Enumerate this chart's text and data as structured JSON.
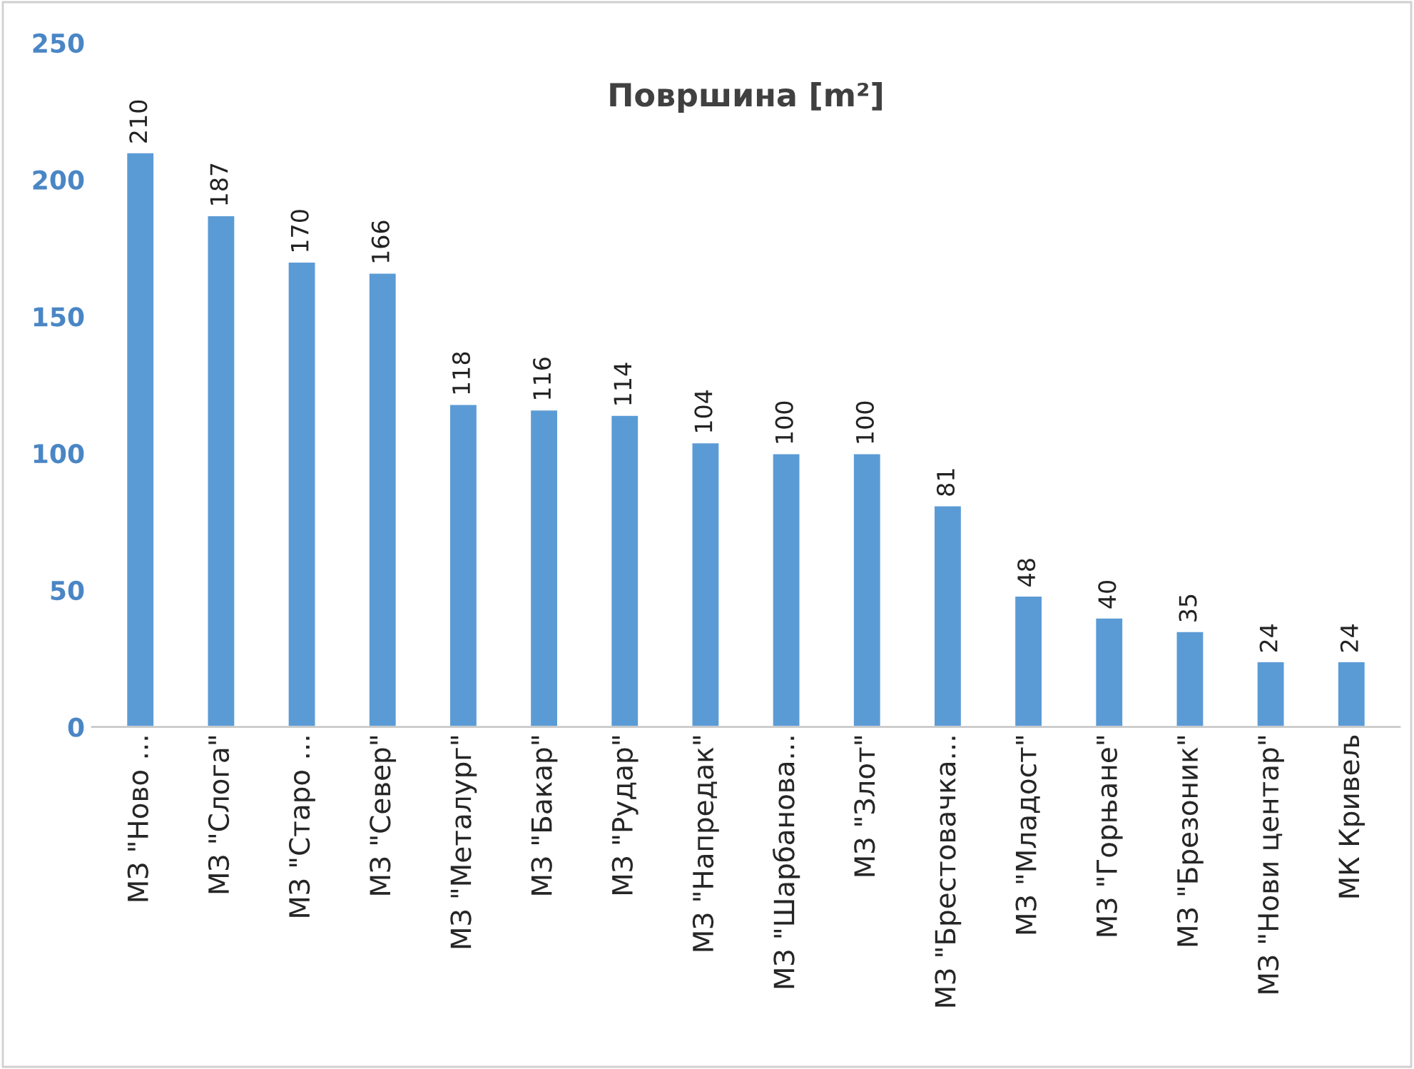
{
  "chart_data": {
    "type": "bar",
    "title": "Површина [m²]",
    "categories": [
      "МЗ \"Ново ...",
      "МЗ \"Слога\"",
      "МЗ \"Старо ...",
      "МЗ \"Север\"",
      "МЗ \"Металург\"",
      "МЗ \"Бакар\"",
      "МЗ \"Рудар\"",
      "МЗ \"Напредак\"",
      "МЗ \"Шарбанова...",
      "МЗ \"Злот\"",
      "МЗ \"Брестовачка...",
      "МЗ \"Младост\"",
      "МЗ \"Горњане\"",
      "МЗ \"Брезоник\"",
      "МЗ \"Нови центар\"",
      "МК Кривељ"
    ],
    "values": [
      210,
      187,
      170,
      166,
      118,
      116,
      114,
      104,
      100,
      100,
      81,
      48,
      40,
      35,
      24,
      24
    ],
    "color": "#5b9bd5",
    "ylim": [
      0,
      250
    ],
    "yticks": [
      0,
      50,
      100,
      150,
      200,
      250
    ],
    "data_labels": true,
    "grid": false
  }
}
